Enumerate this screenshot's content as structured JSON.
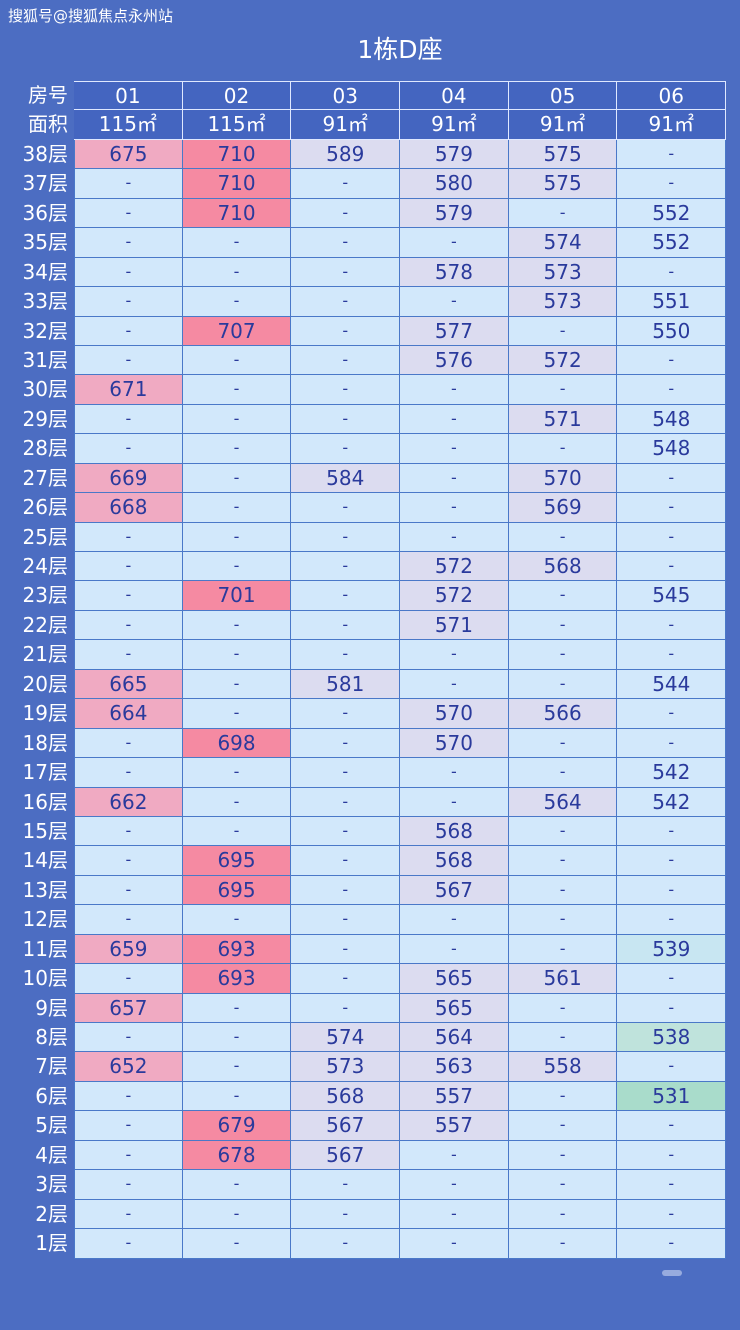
{
  "watermark": "搜狐号@搜狐焦点永州站",
  "title": "1栋D座",
  "header": {
    "room_label": "房号",
    "area_label": "面积",
    "rooms": [
      "01",
      "02",
      "03",
      "04",
      "05",
      "06"
    ],
    "areas": [
      "115㎡",
      "115㎡",
      "91㎡",
      "91㎡",
      "91㎡",
      "91㎡"
    ]
  },
  "colors": {
    "background": "#4c6dc2",
    "cell": "#d2e8fb",
    "text": "#2a3a9c",
    "col01": "#f0aac2",
    "col02": "#f58aa2",
    "col03_05": "#dcdcf0",
    "col06_539": "#c8e6f2",
    "col06_538": "#bfe3dc",
    "col06_531": "#a9dccb"
  },
  "rows": [
    {
      "floor": "38层",
      "cells": [
        "675",
        "710",
        "589",
        "579",
        "575",
        "-"
      ]
    },
    {
      "floor": "37层",
      "cells": [
        "-",
        "710",
        "-",
        "580",
        "575",
        "-"
      ]
    },
    {
      "floor": "36层",
      "cells": [
        "-",
        "710",
        "-",
        "579",
        "-",
        "552"
      ]
    },
    {
      "floor": "35层",
      "cells": [
        "-",
        "-",
        "-",
        "-",
        "574",
        "552"
      ]
    },
    {
      "floor": "34层",
      "cells": [
        "-",
        "-",
        "-",
        "578",
        "573",
        "-"
      ]
    },
    {
      "floor": "33层",
      "cells": [
        "-",
        "-",
        "-",
        "-",
        "573",
        "551"
      ]
    },
    {
      "floor": "32层",
      "cells": [
        "-",
        "707",
        "-",
        "577",
        "-",
        "550"
      ]
    },
    {
      "floor": "31层",
      "cells": [
        "-",
        "-",
        "-",
        "576",
        "572",
        "-"
      ]
    },
    {
      "floor": "30层",
      "cells": [
        "671",
        "-",
        "-",
        "-",
        "-",
        "-"
      ]
    },
    {
      "floor": "29层",
      "cells": [
        "-",
        "-",
        "-",
        "-",
        "571",
        "548"
      ]
    },
    {
      "floor": "28层",
      "cells": [
        "-",
        "-",
        "-",
        "-",
        "-",
        "548"
      ]
    },
    {
      "floor": "27层",
      "cells": [
        "669",
        "-",
        "584",
        "-",
        "570",
        "-"
      ]
    },
    {
      "floor": "26层",
      "cells": [
        "668",
        "-",
        "-",
        "-",
        "569",
        "-"
      ]
    },
    {
      "floor": "25层",
      "cells": [
        "-",
        "-",
        "-",
        "-",
        "-",
        "-"
      ]
    },
    {
      "floor": "24层",
      "cells": [
        "-",
        "-",
        "-",
        "572",
        "568",
        "-"
      ]
    },
    {
      "floor": "23层",
      "cells": [
        "-",
        "701",
        "-",
        "572",
        "-",
        "545"
      ]
    },
    {
      "floor": "22层",
      "cells": [
        "-",
        "-",
        "-",
        "571",
        "-",
        "-"
      ]
    },
    {
      "floor": "21层",
      "cells": [
        "-",
        "-",
        "-",
        "-",
        "-",
        "-"
      ]
    },
    {
      "floor": "20层",
      "cells": [
        "665",
        "-",
        "581",
        "-",
        "-",
        "544"
      ]
    },
    {
      "floor": "19层",
      "cells": [
        "664",
        "-",
        "-",
        "570",
        "566",
        "-"
      ]
    },
    {
      "floor": "18层",
      "cells": [
        "-",
        "698",
        "-",
        "570",
        "-",
        "-"
      ]
    },
    {
      "floor": "17层",
      "cells": [
        "-",
        "-",
        "-",
        "-",
        "-",
        "542"
      ]
    },
    {
      "floor": "16层",
      "cells": [
        "662",
        "-",
        "-",
        "-",
        "564",
        "542"
      ]
    },
    {
      "floor": "15层",
      "cells": [
        "-",
        "-",
        "-",
        "568",
        "-",
        "-"
      ]
    },
    {
      "floor": "14层",
      "cells": [
        "-",
        "695",
        "-",
        "568",
        "-",
        "-"
      ]
    },
    {
      "floor": "13层",
      "cells": [
        "-",
        "695",
        "-",
        "567",
        "-",
        "-"
      ]
    },
    {
      "floor": "12层",
      "cells": [
        "-",
        "-",
        "-",
        "-",
        "-",
        "-"
      ]
    },
    {
      "floor": "11层",
      "cells": [
        "659",
        "693",
        "-",
        "-",
        "-",
        "539"
      ]
    },
    {
      "floor": "10层",
      "cells": [
        "-",
        "693",
        "-",
        "565",
        "561",
        "-"
      ]
    },
    {
      "floor": "9层",
      "cells": [
        "657",
        "-",
        "-",
        "565",
        "-",
        "-"
      ]
    },
    {
      "floor": "8层",
      "cells": [
        "-",
        "-",
        "574",
        "564",
        "-",
        "538"
      ]
    },
    {
      "floor": "7层",
      "cells": [
        "652",
        "-",
        "573",
        "563",
        "558",
        "-"
      ]
    },
    {
      "floor": "6层",
      "cells": [
        "-",
        "-",
        "568",
        "557",
        "-",
        "531"
      ]
    },
    {
      "floor": "5层",
      "cells": [
        "-",
        "679",
        "567",
        "557",
        "-",
        "-"
      ]
    },
    {
      "floor": "4层",
      "cells": [
        "-",
        "678",
        "567",
        "-",
        "-",
        "-"
      ]
    },
    {
      "floor": "3层",
      "cells": [
        "-",
        "-",
        "-",
        "-",
        "-",
        "-"
      ]
    },
    {
      "floor": "2层",
      "cells": [
        "-",
        "-",
        "-",
        "-",
        "-",
        "-"
      ]
    },
    {
      "floor": "1层",
      "cells": [
        "-",
        "-",
        "-",
        "-",
        "-",
        "-"
      ]
    }
  ]
}
